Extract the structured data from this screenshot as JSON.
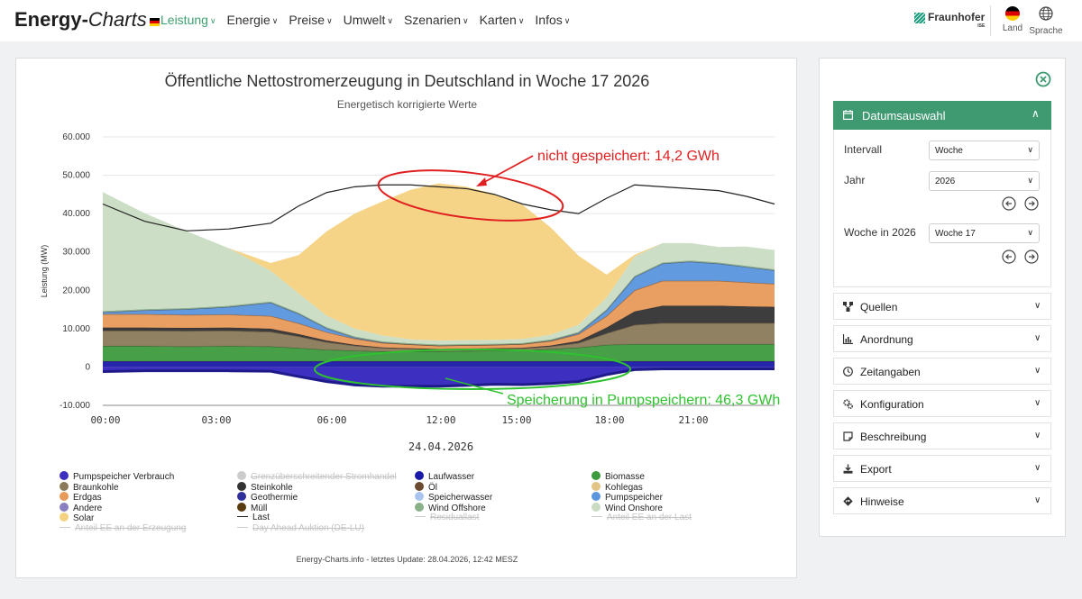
{
  "header": {
    "logo_part1": "Energy-",
    "logo_part2": "Charts",
    "nav": [
      {
        "label": "Leistung",
        "active": true
      },
      {
        "label": "Energie"
      },
      {
        "label": "Preise"
      },
      {
        "label": "Umwelt"
      },
      {
        "label": "Szenarien"
      },
      {
        "label": "Karten"
      },
      {
        "label": "Infos"
      }
    ],
    "brand": "Fraunhofer",
    "brand_sub": "ISE",
    "land_label": "Land",
    "language_label": "Sprache"
  },
  "chart_data": {
    "type": "area",
    "title": "Öffentliche Nettostromerzeugung in Deutschland in Woche 17 2026",
    "subtitle": "Energetisch korrigierte Werte",
    "ylabel": "Leistung (MW)",
    "xlabel": "24.04.2026",
    "ylim": [
      -10000,
      60000
    ],
    "yticks": [
      "60.000",
      "50.000",
      "40.000",
      "30.000",
      "20.000",
      "10.000",
      "0",
      "-10.000"
    ],
    "xticks": [
      "00:00",
      "03:00",
      "06:00",
      "12:00",
      "15:00",
      "18:00",
      "21:00"
    ],
    "x_hours": [
      0,
      1.5,
      3,
      4.5,
      6,
      7,
      8,
      9,
      10,
      11,
      12,
      13,
      14,
      15,
      16,
      17,
      18,
      19,
      20,
      21,
      22,
      23,
      24
    ],
    "series": [
      {
        "name": "Pumpspeicher Verbrauch",
        "color": "#3d2fbf",
        "values": [
          -1200,
          -1000,
          -1000,
          -1000,
          -1100,
          -2500,
          -3800,
          -4700,
          -5000,
          -5000,
          -5000,
          -4800,
          -4500,
          -4600,
          -4300,
          -3800,
          -2000,
          -700,
          -500,
          -500,
          -500,
          -500,
          -500
        ]
      },
      {
        "name": "Laufwasser",
        "color": "#1a1aa8",
        "values": [
          1500,
          1500,
          1500,
          1500,
          1500,
          1500,
          1500,
          1500,
          1500,
          1500,
          1500,
          1500,
          1500,
          1500,
          1500,
          1500,
          1500,
          1500,
          1500,
          1500,
          1500,
          1500,
          1500
        ]
      },
      {
        "name": "Biomasse",
        "color": "#3d9a3d",
        "values": [
          4000,
          4000,
          3900,
          4000,
          3900,
          3500,
          3000,
          2800,
          2600,
          2600,
          2600,
          2700,
          2800,
          2900,
          3200,
          3600,
          4300,
          4500,
          4500,
          4500,
          4500,
          4500,
          4500
        ]
      },
      {
        "name": "Braunkohle",
        "color": "#8a7a5a",
        "values": [
          4000,
          4000,
          4000,
          4000,
          3800,
          3000,
          2000,
          1300,
          900,
          700,
          500,
          500,
          500,
          500,
          700,
          1200,
          3000,
          5000,
          5500,
          5500,
          5500,
          5500,
          5500
        ]
      },
      {
        "name": "Steinkohle",
        "color": "#333333",
        "values": [
          800,
          800,
          800,
          800,
          800,
          600,
          400,
          200,
          100,
          100,
          100,
          100,
          100,
          100,
          200,
          500,
          1500,
          3500,
          4500,
          4500,
          4500,
          4300,
          4200
        ]
      },
      {
        "name": "Erdgas",
        "color": "#e89a5a",
        "values": [
          3500,
          3500,
          3400,
          3400,
          3300,
          2800,
          2200,
          1600,
          1200,
          1000,
          900,
          900,
          900,
          1000,
          1200,
          1800,
          3000,
          5500,
          6500,
          6500,
          6500,
          6300,
          6000
        ]
      },
      {
        "name": "Pumpspeicher",
        "color": "#5a95dd",
        "values": [
          500,
          1000,
          1500,
          2000,
          3500,
          2500,
          1000,
          300,
          100,
          0,
          0,
          0,
          0,
          0,
          100,
          300,
          1500,
          3500,
          4500,
          5000,
          4500,
          4000,
          3500
        ]
      },
      {
        "name": "Wind Offshore",
        "color": "#8ab08a",
        "values": [
          300,
          300,
          300,
          300,
          300,
          300,
          300,
          300,
          300,
          300,
          300,
          300,
          300,
          300,
          300,
          300,
          300,
          300,
          300,
          300,
          300,
          300,
          300
        ]
      },
      {
        "name": "Wind Onshore",
        "color": "#c9dcc3",
        "values": [
          31000,
          25000,
          20000,
          15000,
          8000,
          5000,
          3000,
          2000,
          1500,
          1000,
          1000,
          1000,
          1000,
          1000,
          1200,
          1800,
          3000,
          5000,
          5000,
          4500,
          4000,
          5000,
          5000
        ]
      },
      {
        "name": "Solar",
        "color": "#f4d282",
        "values": [
          0,
          0,
          0,
          0,
          2000,
          10000,
          22000,
          30000,
          35000,
          39000,
          41000,
          40000,
          38000,
          35000,
          28000,
          18000,
          6000,
          500,
          0,
          0,
          0,
          0,
          0
        ]
      },
      {
        "name": "Last",
        "color": "#222222",
        "values": [
          42500,
          38000,
          35500,
          36000,
          37500,
          42000,
          45500,
          47000,
          47500,
          47500,
          47000,
          46500,
          45000,
          42500,
          41000,
          40000,
          44000,
          47500,
          47000,
          46500,
          46000,
          44500,
          42500
        ]
      }
    ],
    "annotations": [
      {
        "text": "nicht gespeichert: 14,2 GWh",
        "color": "#e02020"
      },
      {
        "text": "Speicherung in Pumpspeichern: 46,3 GWh",
        "color": "#2ec22e"
      }
    ],
    "legend": [
      {
        "label": "Pumpspeicher Verbrauch",
        "color": "#3d2fbf",
        "kind": "dot",
        "active": true
      },
      {
        "label": "Grenzüberschreitender Stromhandel",
        "color": "#cccccc",
        "kind": "dot",
        "active": false
      },
      {
        "label": "Laufwasser",
        "color": "#1a1aa8",
        "kind": "dot",
        "active": true
      },
      {
        "label": "Biomasse",
        "color": "#3d9a3d",
        "kind": "dot",
        "active": true
      },
      {
        "label": "Braunkohle",
        "color": "#8a7a5a",
        "kind": "dot",
        "active": true
      },
      {
        "label": "Steinkohle",
        "color": "#333333",
        "kind": "dot",
        "active": true
      },
      {
        "label": "Öl",
        "color": "#6b4a30",
        "kind": "dot",
        "active": true
      },
      {
        "label": "Kohlegas",
        "color": "#e2c487",
        "kind": "dot",
        "active": true
      },
      {
        "label": "Erdgas",
        "color": "#e89a5a",
        "kind": "dot",
        "active": true
      },
      {
        "label": "Geothermie",
        "color": "#2f2f9a",
        "kind": "dot",
        "active": true
      },
      {
        "label": "Speicherwasser",
        "color": "#aac4f0",
        "kind": "dot",
        "active": true
      },
      {
        "label": "Pumpspeicher",
        "color": "#5a95dd",
        "kind": "dot",
        "active": true
      },
      {
        "label": "Andere",
        "color": "#8a80c0",
        "kind": "dot",
        "active": true
      },
      {
        "label": "Müll",
        "color": "#5a3a10",
        "kind": "dot",
        "active": true
      },
      {
        "label": "Wind Offshore",
        "color": "#8ab08a",
        "kind": "dot",
        "active": true
      },
      {
        "label": "Wind Onshore",
        "color": "#c9dcc3",
        "kind": "dot",
        "active": true
      },
      {
        "label": "Solar",
        "color": "#f4d282",
        "kind": "dot",
        "active": true
      },
      {
        "label": "Last",
        "color": "#222222",
        "kind": "line",
        "active": true
      },
      {
        "label": "Residuallast",
        "color": "#cccccc",
        "kind": "line",
        "active": false
      },
      {
        "label": "Anteil EE an der Last",
        "color": "#cccccc",
        "kind": "line",
        "active": false
      },
      {
        "label": "Anteil EE an der Erzeugung",
        "color": "#cccccc",
        "kind": "line",
        "active": false
      },
      {
        "label": "Day Ahead Auktion (DE-LU)",
        "color": "#cccccc",
        "kind": "line",
        "active": false
      }
    ],
    "footer": "Energy-Charts.info - letztes Update: 28.04.2026, 12:42 MESZ"
  },
  "sidebar": {
    "active_section": "Datumsauswahl",
    "interval_label": "Intervall",
    "interval_value": "Woche",
    "year_label": "Jahr",
    "year_value": "2026",
    "week_label": "Woche in 2026",
    "week_value": "Woche 17",
    "sections": [
      "Quellen",
      "Anordnung",
      "Zeitangaben",
      "Konfiguration",
      "Beschreibung",
      "Export",
      "Hinweise"
    ]
  },
  "colors": {
    "accent": "#3f9a72",
    "annotation_red": "#e02020",
    "annotation_green": "#2ec22e"
  }
}
